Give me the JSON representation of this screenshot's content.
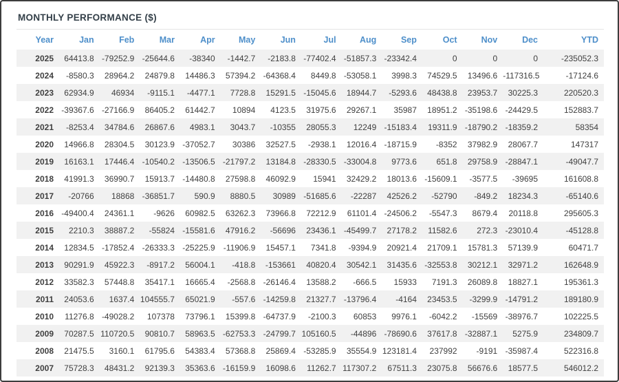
{
  "title": "MONTHLY PERFORMANCE ($)",
  "colors": {
    "header_blue": "#4e8fca",
    "negative_red": "#f06a6a",
    "stripe_gray": "#f1f1f1",
    "title_dark": "#333f48"
  },
  "table": {
    "columns": [
      "Year",
      "Jan",
      "Feb",
      "Mar",
      "Apr",
      "May",
      "Jun",
      "Jul",
      "Aug",
      "Sep",
      "Oct",
      "Nov",
      "Dec",
      "YTD"
    ],
    "rows": [
      {
        "year": "2025",
        "values": [
          "64413.8",
          "-79252.9",
          "-25644.6",
          "-38340",
          "-1442.7",
          "-2183.8",
          "-77402.4",
          "-51857.3",
          "-23342.4",
          "0",
          "0",
          "0",
          "-235052.3"
        ]
      },
      {
        "year": "2024",
        "values": [
          "-8580.3",
          "28964.2",
          "24879.8",
          "14486.3",
          "57394.2",
          "-64368.4",
          "8449.8",
          "-53058.1",
          "3998.3",
          "74529.5",
          "13496.6",
          "-117316.5",
          "-17124.6"
        ]
      },
      {
        "year": "2023",
        "values": [
          "62934.9",
          "46934",
          "-9115.1",
          "-4477.1",
          "7728.8",
          "15291.5",
          "-15045.6",
          "18944.7",
          "-5293.6",
          "48438.8",
          "23953.7",
          "30225.3",
          "220520.3"
        ]
      },
      {
        "year": "2022",
        "values": [
          "-39367.6",
          "-27166.9",
          "86405.2",
          "61442.7",
          "10894",
          "4123.5",
          "31975.6",
          "29267.1",
          "35987",
          "18951.2",
          "-35198.6",
          "-24429.5",
          "152883.7"
        ]
      },
      {
        "year": "2021",
        "values": [
          "-8253.4",
          "34784.6",
          "26867.6",
          "4983.1",
          "3043.7",
          "-10355",
          "28055.3",
          "12249",
          "-15183.4",
          "19311.9",
          "-18790.2",
          "-18359.2",
          "58354"
        ]
      },
      {
        "year": "2020",
        "values": [
          "14966.8",
          "28304.5",
          "30123.9",
          "-37052.7",
          "30386",
          "32527.5",
          "-2938.1",
          "12016.4",
          "-18715.9",
          "-8352",
          "37982.9",
          "28067.7",
          "147317"
        ]
      },
      {
        "year": "2019",
        "values": [
          "16163.1",
          "17446.4",
          "-10540.2",
          "-13506.5",
          "-21797.2",
          "13184.8",
          "-28330.5",
          "-33004.8",
          "9773.6",
          "651.8",
          "29758.9",
          "-28847.1",
          "-49047.7"
        ]
      },
      {
        "year": "2018",
        "values": [
          "41991.3",
          "36990.7",
          "15913.7",
          "-14480.8",
          "27598.8",
          "46092.9",
          "15941",
          "32429.2",
          "18013.6",
          "-15609.1",
          "-3577.5",
          "-39695",
          "161608.8"
        ]
      },
      {
        "year": "2017",
        "values": [
          "-20766",
          "18868",
          "-36851.7",
          "590.9",
          "8880.5",
          "30989",
          "-51685.6",
          "-22287",
          "42526.2",
          "-52790",
          "-849.2",
          "18234.3",
          "-65140.6"
        ]
      },
      {
        "year": "2016",
        "values": [
          "-49400.4",
          "24361.1",
          "-9626",
          "60982.5",
          "63262.3",
          "73966.8",
          "72212.9",
          "61101.4",
          "-24506.2",
          "-5547.3",
          "8679.4",
          "20118.8",
          "295605.3"
        ]
      },
      {
        "year": "2015",
        "values": [
          "2210.3",
          "38887.2",
          "-55824",
          "-15581.6",
          "47916.2",
          "-56696",
          "23436.1",
          "-45499.7",
          "27178.2",
          "11582.6",
          "272.3",
          "-23010.4",
          "-45128.8"
        ]
      },
      {
        "year": "2014",
        "values": [
          "12834.5",
          "-17852.4",
          "-26333.3",
          "-25225.9",
          "-11906.9",
          "15457.1",
          "7341.8",
          "-9394.9",
          "20921.4",
          "21709.1",
          "15781.3",
          "57139.9",
          "60471.7"
        ]
      },
      {
        "year": "2013",
        "values": [
          "90291.9",
          "45922.3",
          "-8917.2",
          "56004.1",
          "-418.8",
          "-153661",
          "40820.4",
          "30542.1",
          "31435.6",
          "-32553.8",
          "30212.1",
          "32971.2",
          "162648.9"
        ]
      },
      {
        "year": "2012",
        "values": [
          "33582.3",
          "57448.8",
          "35417.1",
          "16665.4",
          "-2568.8",
          "-26146.4",
          "13588.2",
          "-666.5",
          "15933",
          "7191.3",
          "26089.8",
          "18827.1",
          "195361.3"
        ]
      },
      {
        "year": "2011",
        "values": [
          "24053.6",
          "1637.4",
          "104555.7",
          "65021.9",
          "-557.6",
          "-14259.8",
          "21327.7",
          "-13796.4",
          "-4164",
          "23453.5",
          "-3299.9",
          "-14791.2",
          "189180.9"
        ]
      },
      {
        "year": "2010",
        "values": [
          "11276.8",
          "-49028.2",
          "107378",
          "73796.1",
          "15399.8",
          "-64737.9",
          "-2100.3",
          "60853",
          "9976.1",
          "-6042.2",
          "-15569",
          "-38976.7",
          "102225.5"
        ]
      },
      {
        "year": "2009",
        "values": [
          "70287.5",
          "110720.5",
          "90810.7",
          "58963.5",
          "-62753.3",
          "-24799.7",
          "105160.5",
          "-44896",
          "-78690.6",
          "37617.8",
          "-32887.1",
          "5275.9",
          "234809.7"
        ]
      },
      {
        "year": "2008",
        "values": [
          "21475.5",
          "3160.1",
          "61795.6",
          "54383.4",
          "57368.8",
          "25869.4",
          "-53285.9",
          "35554.9",
          "123181.4",
          "237992",
          "-9191",
          "-35987.4",
          "522316.8"
        ]
      },
      {
        "year": "2007",
        "values": [
          "75728.3",
          "48431.2",
          "92139.3",
          "35363.6",
          "-16159.9",
          "16098.6",
          "11262.7",
          "117307.2",
          "67511.3",
          "23075.8",
          "56676.6",
          "18577.5",
          "546012.2"
        ]
      }
    ]
  }
}
